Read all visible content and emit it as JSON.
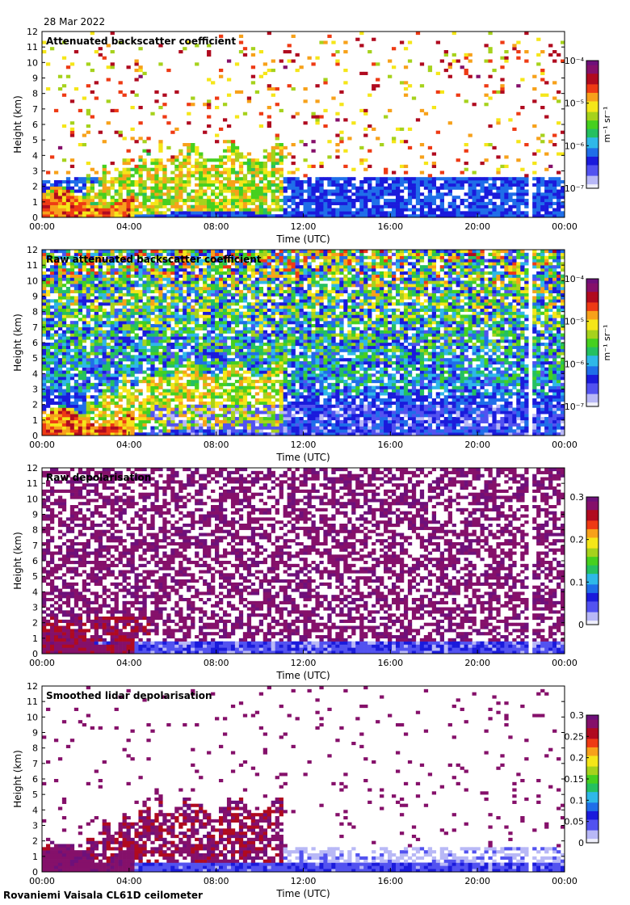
{
  "date": "28 Mar 2022",
  "footer": "Rovaniemi Vaisala CL61D ceilometer",
  "colors": {
    "colormap": [
      "#efeffa",
      "#b8b8f6",
      "#5252f0",
      "#1a1adc",
      "#1f6ee9",
      "#2fb8e8",
      "#25c060",
      "#46d01f",
      "#a6d21c",
      "#f5e619",
      "#f7a11a",
      "#ee3a14",
      "#b00a1f",
      "#85106a",
      "#6e107a"
    ]
  },
  "chart_data": [
    {
      "type": "heatmap",
      "title": "Attenuated backscatter coefficient",
      "xlabel": "Time (UTC)",
      "ylabel": "Height (km)",
      "x_ticks": [
        "00:00",
        "04:00",
        "08:00",
        "12:00",
        "16:00",
        "20:00",
        "00:00"
      ],
      "y_ticks": [
        "0",
        "1",
        "2",
        "3",
        "4",
        "5",
        "6",
        "7",
        "8",
        "9",
        "10",
        "11",
        "12"
      ],
      "ylim": [
        0,
        12
      ],
      "xlim_hours": [
        0,
        24
      ],
      "colorbar": {
        "label": "m⁻¹ sr⁻¹",
        "scale": "log",
        "range": [
          1e-07,
          0.0001
        ],
        "ticks": [
          "10⁻⁷",
          "10⁻⁶",
          "10⁻⁵",
          "10⁻⁴"
        ]
      },
      "features": {
        "boundary_layer_top_km": 2.2,
        "cloud_top_km": 5,
        "data_gap_hour": 22.5,
        "noise": "low"
      }
    },
    {
      "type": "heatmap",
      "title": "Raw attenuated backscatter coefficient",
      "xlabel": "Time (UTC)",
      "ylabel": "Height (km)",
      "x_ticks": [
        "00:00",
        "04:00",
        "08:00",
        "12:00",
        "16:00",
        "20:00",
        "00:00"
      ],
      "y_ticks": [
        "0",
        "1",
        "2",
        "3",
        "4",
        "5",
        "6",
        "7",
        "8",
        "9",
        "10",
        "11",
        "12"
      ],
      "ylim": [
        0,
        12
      ],
      "xlim_hours": [
        0,
        24
      ],
      "colorbar": {
        "label": "m⁻¹ sr⁻¹",
        "scale": "log",
        "range": [
          1e-07,
          0.0001
        ],
        "ticks": [
          "10⁻⁷",
          "10⁻⁶",
          "10⁻⁵",
          "10⁻⁴"
        ]
      },
      "features": {
        "boundary_layer_top_km": 2.2,
        "cloud_top_km": 5,
        "data_gap_hour": 22.5,
        "noise": "high"
      }
    },
    {
      "type": "heatmap",
      "title": "Raw depolarisation",
      "xlabel": "Time (UTC)",
      "ylabel": "Height (km)",
      "x_ticks": [
        "00:00",
        "04:00",
        "08:00",
        "12:00",
        "16:00",
        "20:00",
        "00:00"
      ],
      "y_ticks": [
        "0",
        "1",
        "2",
        "3",
        "4",
        "5",
        "6",
        "7",
        "8",
        "9",
        "10",
        "11",
        "12"
      ],
      "ylim": [
        0,
        12
      ],
      "xlim_hours": [
        0,
        24
      ],
      "colorbar": {
        "label": "",
        "scale": "linear",
        "range": [
          0,
          0.3
        ],
        "ticks": [
          "0",
          "0.1",
          "0.2",
          "0.3"
        ]
      },
      "features": {
        "boundary_layer_top_km": 2.2,
        "cloud_top_km": 4,
        "data_gap_hour": 22.5,
        "noise": "depol"
      }
    },
    {
      "type": "heatmap",
      "title": "Smoothed lidar depolarisation",
      "xlabel": "Time (UTC)",
      "ylabel": "Height (km)",
      "x_ticks": [
        "00:00",
        "04:00",
        "08:00",
        "12:00",
        "16:00",
        "20:00",
        "00:00"
      ],
      "y_ticks": [
        "0",
        "1",
        "2",
        "3",
        "4",
        "5",
        "6",
        "7",
        "8",
        "9",
        "10",
        "11",
        "12"
      ],
      "ylim": [
        0,
        12
      ],
      "xlim_hours": [
        0,
        24
      ],
      "colorbar": {
        "label": "",
        "scale": "linear",
        "range": [
          0,
          0.3
        ],
        "ticks": [
          "0",
          "0.05",
          "0.1",
          "0.15",
          "0.2",
          "0.25",
          "0.3"
        ]
      },
      "features": {
        "boundary_layer_top_km": 2.2,
        "cloud_top_km": 5,
        "data_gap_hour": 22.5,
        "noise": "sparse"
      }
    }
  ]
}
